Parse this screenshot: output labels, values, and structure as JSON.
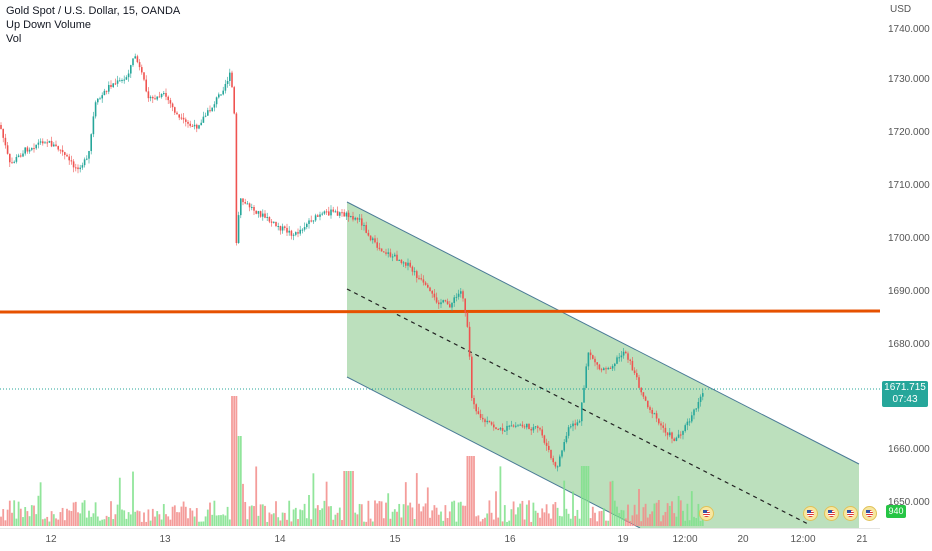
{
  "legend": {
    "symbol": "Gold Spot / U.S. Dollar, 15, OANDA",
    "indicator1": "Up Down Volume",
    "indicator2": "Vol"
  },
  "price_axis": {
    "currency": "USD",
    "labels": [
      "1740.000",
      "1730.000",
      "1720.000",
      "1710.000",
      "1700.000",
      "1690.000",
      "1680.000",
      "1660.000",
      "1650.000"
    ],
    "current_price": "1671.715",
    "countdown": "07:43",
    "volume_value": "940"
  },
  "time_axis": {
    "labels": [
      "12",
      "13",
      "14",
      "15",
      "16",
      "19",
      "12:00",
      "20",
      "12:00",
      "21"
    ]
  },
  "colors": {
    "up": "#26a69a",
    "down": "#ef5350",
    "channel_fill": "#a5d6a7",
    "channel_line": "#4a7a96",
    "horizontal_line": "#e65100",
    "current_price_bg": "#26a69a"
  },
  "icons": [
    "us-flag-event-icon"
  ]
}
